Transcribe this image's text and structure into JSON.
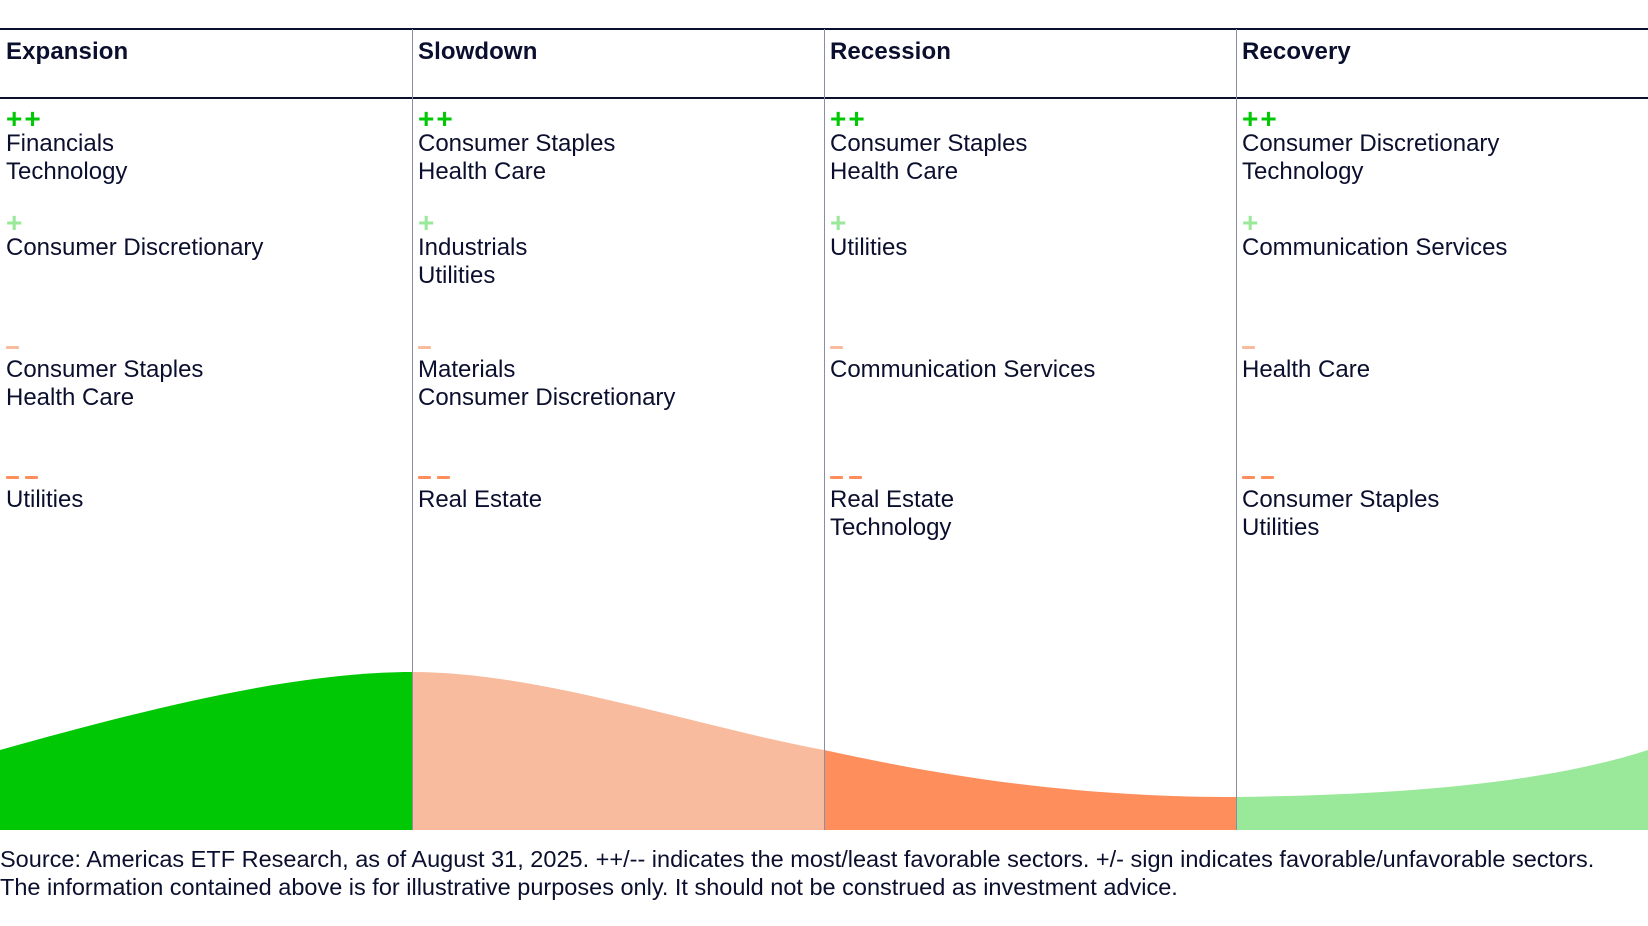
{
  "colors": {
    "double_plus": "#00c805",
    "single_plus": "#9ae89a",
    "single_minus": "#f9bb9d",
    "double_minus": "#fe8f5d",
    "text": "#0b0f2e",
    "divider": "#8a8da3"
  },
  "markers": {
    "double_plus": "++",
    "single_plus": "+",
    "single_minus": "−",
    "double_minus": "− −"
  },
  "phases": [
    {
      "title": "Expansion",
      "double_plus": [
        "Financials",
        "Technology"
      ],
      "single_plus": [
        "Consumer Discretionary"
      ],
      "single_minus": [
        "Consumer Staples",
        "Health Care"
      ],
      "double_minus": [
        "Utilities"
      ]
    },
    {
      "title": "Slowdown",
      "double_plus": [
        "Consumer Staples",
        "Health Care"
      ],
      "single_plus": [
        "Industrials",
        "Utilities"
      ],
      "single_minus": [
        "Materials",
        "Consumer Discretionary"
      ],
      "double_minus": [
        "Real Estate"
      ]
    },
    {
      "title": "Recession",
      "double_plus": [
        "Consumer Staples",
        "Health Care"
      ],
      "single_plus": [
        "Utilities"
      ],
      "single_minus": [
        "Communication Services"
      ],
      "double_minus": [
        "Real Estate",
        "Technology"
      ]
    },
    {
      "title": "Recovery",
      "double_plus": [
        "Consumer Discretionary",
        "Technology"
      ],
      "single_plus": [
        "Communication Services"
      ],
      "single_minus": [
        "Health Care"
      ],
      "double_minus": [
        "Consumer Staples",
        "Utilities"
      ]
    }
  ],
  "source_note": "Source: Americas ETF Research, as of August 31, 2025. ++/-- indicates the most/least favorable sectors. +/- sign indicates favorable/unfavorable sectors. The information contained above is for illustrative purposes only. It should not be construed as investment advice."
}
